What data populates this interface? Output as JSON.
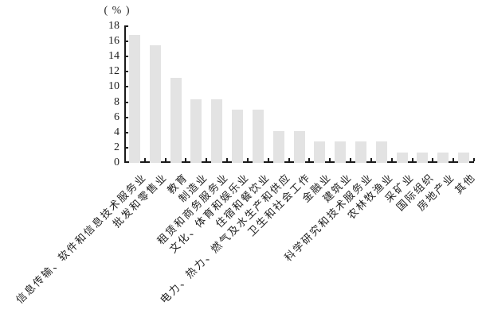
{
  "chart_data": {
    "type": "bar",
    "title": "",
    "unit_label": "( % )",
    "categories": [
      "信息传输、软件和信息技术服务业",
      "批发和零售业",
      "教育",
      "制造业",
      "租赁和商务服务业",
      "文化、体育和娱乐业",
      "住宿和餐饮业",
      "电力、热力、燃气及水生产和供应",
      "卫生和社会工作",
      "金融业",
      "建筑业",
      "科学研究和技术服务业",
      "农林牧渔业",
      "采矿业",
      "国际组织",
      "房地产业",
      "其他"
    ],
    "values": [
      16.9,
      15.5,
      11.2,
      8.4,
      8.4,
      7.0,
      7.0,
      4.2,
      4.2,
      2.8,
      2.8,
      2.8,
      2.8,
      1.4,
      1.4,
      1.4,
      1.4
    ],
    "xlabel": "",
    "ylabel": "( % )",
    "ylim": [
      0,
      18
    ],
    "yticks": [
      0,
      2,
      4,
      6,
      8,
      10,
      12,
      14,
      16,
      18
    ],
    "grid": false,
    "legend_position": "none",
    "bar_color": "#e3e3e3",
    "axis_color": "#1a1a1a"
  }
}
